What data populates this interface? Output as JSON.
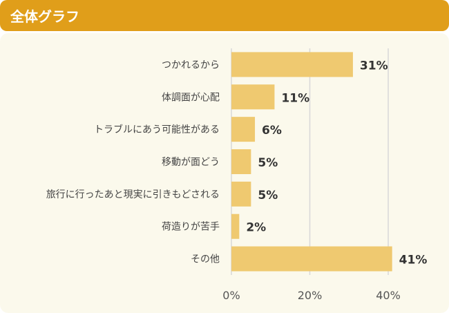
{
  "header": {
    "title": "全体グラフ"
  },
  "colors": {
    "header": "#E09E1A",
    "background": "#FBF9EC",
    "bar": "#EFC970",
    "grid": "#D8D8D8"
  },
  "chart_data": {
    "type": "bar",
    "orientation": "horizontal",
    "title": "",
    "categories": [
      "つかれるから",
      "体調面が心配",
      "トラブルにあう可能性がある",
      "移動が面どう",
      "旅行に行ったあと現実に引きもどされる",
      "荷造りが苦手",
      "その他"
    ],
    "values": [
      31,
      11,
      6,
      5,
      5,
      2,
      41
    ],
    "data_labels": [
      "31%",
      "11%",
      "6%",
      "5%",
      "5%",
      "2%",
      "41%"
    ],
    "xlim": [
      0,
      40
    ],
    "xticks": [
      0,
      20,
      40
    ],
    "xtick_labels": [
      "0%",
      "20%",
      "40%"
    ],
    "grid": true,
    "legend": "none"
  }
}
